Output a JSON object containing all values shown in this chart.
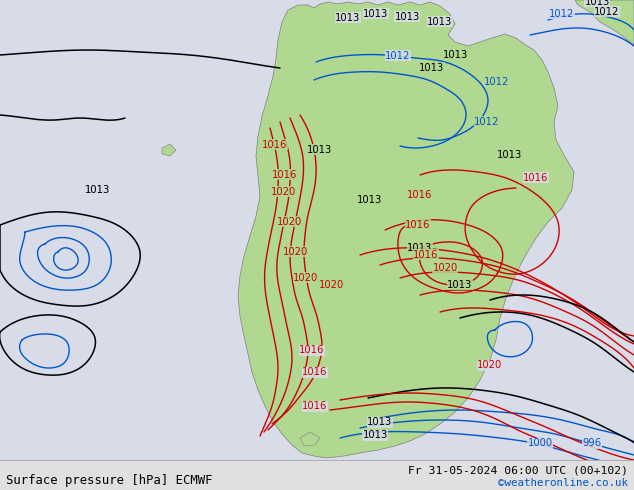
{
  "title_left": "Surface pressure [hPa] ECMWF",
  "title_right": "Fr 31-05-2024 06:00 UTC (00+102)",
  "watermark": "©weatheronline.co.uk",
  "bg_color": "#d8dce8",
  "land_color": "#b0d890",
  "land_edge_color": "#808080",
  "bottom_bar_color": "#e0e0e0",
  "figsize": [
    6.34,
    4.9
  ],
  "dpi": 100,
  "isobar_black_lw": 1.1,
  "isobar_red_lw": 1.0,
  "isobar_blue_lw": 1.0
}
